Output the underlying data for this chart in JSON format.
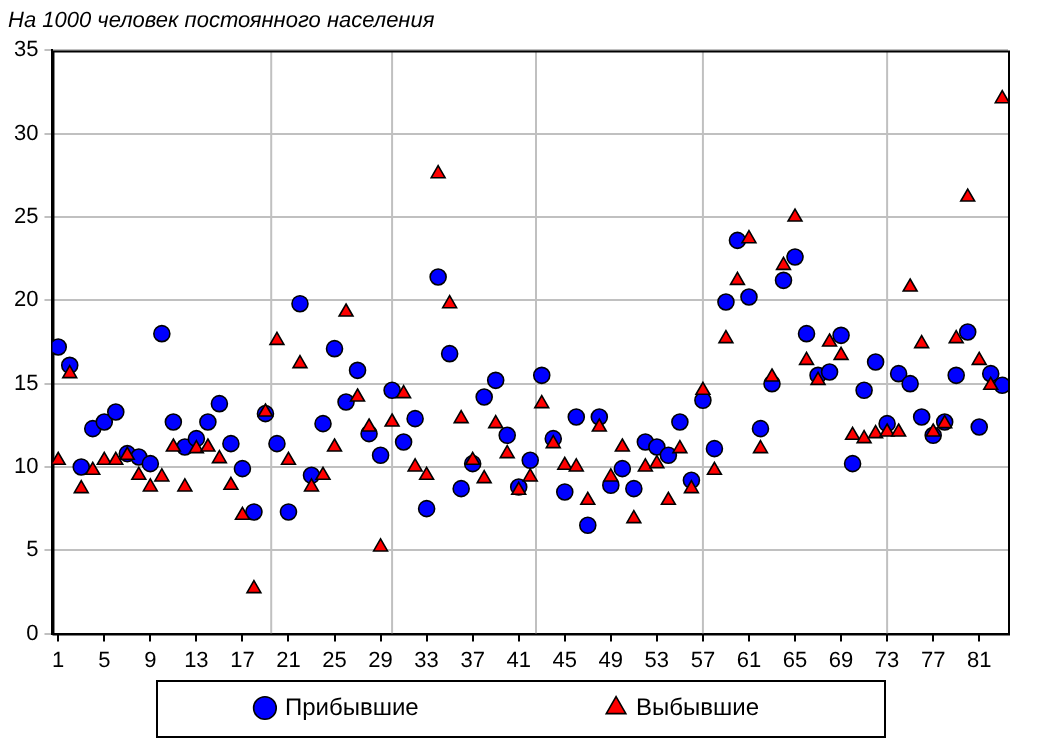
{
  "chart_data": {
    "type": "scatter",
    "title": "На 1000 человек постоянного населения",
    "x": [
      1,
      2,
      3,
      4,
      5,
      6,
      7,
      8,
      9,
      10,
      11,
      12,
      13,
      14,
      15,
      16,
      17,
      18,
      19,
      20,
      21,
      22,
      23,
      24,
      25,
      26,
      27,
      28,
      29,
      30,
      31,
      32,
      33,
      34,
      35,
      36,
      37,
      38,
      39,
      40,
      41,
      42,
      43,
      44,
      45,
      46,
      47,
      48,
      49,
      50,
      51,
      52,
      53,
      54,
      55,
      56,
      57,
      58,
      59,
      60,
      61,
      62,
      63,
      64,
      65,
      66,
      67,
      68,
      69,
      70,
      71,
      72,
      73,
      74,
      75,
      76,
      77,
      78,
      79,
      80,
      81,
      82,
      83
    ],
    "series": [
      {
        "name": "Прибывшие",
        "color": "#0000ff",
        "marker": "circle",
        "values": [
          17.2,
          16.1,
          10.0,
          12.3,
          12.7,
          13.3,
          10.8,
          10.6,
          10.2,
          18.0,
          12.7,
          11.2,
          11.7,
          12.7,
          13.8,
          11.4,
          9.9,
          7.3,
          13.2,
          11.4,
          7.3,
          19.8,
          9.5,
          12.6,
          17.1,
          13.9,
          15.8,
          12.0,
          10.7,
          14.6,
          11.5,
          12.9,
          7.5,
          21.4,
          16.8,
          8.7,
          10.2,
          14.2,
          15.2,
          11.9,
          8.8,
          10.4,
          15.5,
          11.7,
          8.5,
          13.0,
          6.5,
          13.0,
          8.9,
          9.9,
          8.7,
          11.5,
          11.2,
          10.7,
          12.7,
          9.2,
          14.0,
          11.1,
          19.9,
          23.6,
          20.2,
          12.3,
          15.0,
          21.2,
          22.6,
          18.0,
          15.5,
          15.7,
          17.9,
          10.2,
          14.6,
          16.3,
          12.6,
          15.6,
          15.0,
          13.0,
          11.9,
          12.7,
          15.5,
          18.1,
          12.4,
          15.6,
          14.9
        ]
      },
      {
        "name": "Выбывшие",
        "color": "#ff0000",
        "marker": "triangle",
        "values": [
          10.4,
          15.6,
          8.7,
          9.8,
          10.4,
          10.4,
          10.7,
          9.5,
          8.8,
          9.4,
          11.2,
          8.8,
          11.1,
          11.2,
          10.5,
          8.9,
          7.1,
          2.7,
          13.3,
          17.6,
          10.4,
          16.2,
          8.8,
          9.5,
          11.2,
          19.3,
          14.2,
          12.4,
          5.2,
          12.7,
          14.4,
          10.0,
          9.5,
          27.6,
          19.8,
          12.9,
          10.4,
          9.3,
          12.6,
          10.8,
          8.6,
          9.4,
          13.8,
          11.4,
          10.1,
          10.0,
          8.0,
          12.4,
          9.4,
          11.2,
          6.9,
          10.0,
          10.2,
          8.0,
          11.1,
          8.7,
          14.6,
          9.8,
          17.7,
          21.2,
          23.7,
          11.1,
          15.4,
          22.1,
          25.0,
          16.4,
          15.2,
          17.5,
          16.7,
          11.9,
          11.7,
          12.0,
          12.1,
          12.1,
          20.8,
          17.4,
          12.1,
          12.6,
          17.7,
          26.2,
          16.4,
          14.9,
          32.1
        ]
      }
    ],
    "xlim": [
      0.5,
      83.5
    ],
    "xticks": [
      1,
      5,
      9,
      13,
      17,
      21,
      25,
      29,
      33,
      37,
      41,
      45,
      49,
      53,
      57,
      61,
      65,
      69,
      73,
      77,
      81
    ],
    "ylim": [
      0,
      35
    ],
    "yticks": [
      0,
      5,
      10,
      15,
      20,
      25,
      30,
      35
    ],
    "ref_lines": [
      {
        "axis": "x",
        "value": 19.5,
        "color": "#c0c0c0"
      },
      {
        "axis": "x",
        "value": 30,
        "color": "#c0c0c0"
      },
      {
        "axis": "x",
        "value": 42.5,
        "color": "#c0c0c0"
      },
      {
        "axis": "x",
        "value": 57,
        "color": "#c0c0c0"
      },
      {
        "axis": "x",
        "value": 73,
        "color": "#c0c0c0"
      }
    ],
    "grid": "y",
    "legend": "bottom"
  }
}
